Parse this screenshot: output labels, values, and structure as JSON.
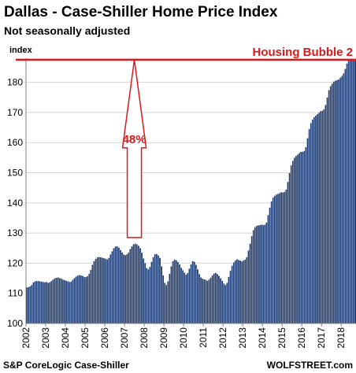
{
  "title": "Dallas - Case-Shiller Home Price Index",
  "subtitle": "Not seasonally adjusted",
  "source": "S&P CoreLogic Case-Shiller",
  "brand": "WOLFSTREET.com",
  "chart_data": {
    "type": "bar",
    "ylabel": "index",
    "ylim": [
      100,
      188
    ],
    "yticks": [
      100,
      110,
      120,
      130,
      140,
      150,
      160,
      170,
      180
    ],
    "year_labels": [
      "2002",
      "2003",
      "2004",
      "2005",
      "2006",
      "2007",
      "2008",
      "2009",
      "2010",
      "2011",
      "2012",
      "2013",
      "2014",
      "2015",
      "2016",
      "2017",
      "2018"
    ],
    "start_year": 2002,
    "reference_line": {
      "value": 187.5,
      "label": "Housing Bubble 2",
      "color": "#d9191c"
    },
    "arrow": {
      "from": 128.5,
      "to": 187.5,
      "year": 2007.5,
      "label": "48%",
      "color": "#d9191c"
    },
    "bar_color": "#1f3d73",
    "values": [
      112.0,
      112.1,
      112.3,
      112.8,
      113.6,
      114.0,
      114.1,
      114.1,
      114.0,
      113.9,
      113.8,
      113.7,
      113.8,
      113.5,
      113.7,
      114.1,
      114.6,
      115.0,
      115.2,
      115.3,
      115.1,
      114.9,
      114.6,
      114.4,
      114.2,
      114.0,
      113.8,
      113.9,
      114.5,
      115.1,
      115.6,
      115.9,
      116.1,
      116.0,
      115.8,
      115.4,
      115.5,
      115.7,
      116.5,
      117.8,
      119.5,
      120.7,
      121.5,
      122.0,
      122.1,
      122.0,
      121.8,
      121.7,
      121.5,
      121.3,
      121.8,
      122.9,
      124.0,
      125.0,
      125.6,
      125.6,
      125.2,
      124.4,
      123.6,
      122.9,
      122.7,
      123.0,
      123.6,
      124.7,
      125.6,
      126.3,
      126.5,
      126.3,
      125.8,
      125.0,
      123.5,
      121.6,
      120.1,
      118.4,
      118.0,
      118.8,
      120.5,
      122.0,
      123.0,
      123.1,
      122.6,
      121.8,
      119.0,
      116.0,
      113.5,
      112.8,
      114.0,
      116.5,
      119.0,
      120.7,
      121.2,
      121.0,
      120.4,
      119.6,
      118.5,
      117.7,
      116.9,
      116.2,
      116.8,
      118.2,
      119.6,
      120.7,
      120.5,
      119.5,
      118.0,
      116.4,
      115.3,
      114.9,
      114.7,
      114.5,
      114.2,
      114.6,
      115.2,
      116.0,
      116.6,
      116.8,
      116.4,
      115.8,
      115.0,
      114.2,
      113.3,
      112.8,
      113.5,
      115.5,
      117.5,
      119.2,
      120.3,
      120.9,
      121.3,
      121.1,
      120.9,
      120.6,
      120.9,
      121.2,
      122.0,
      124.2,
      126.5,
      129.0,
      131.0,
      132.0,
      132.4,
      132.6,
      132.7,
      132.8,
      132.7,
      132.8,
      133.5,
      136.0,
      138.5,
      140.5,
      141.8,
      142.4,
      142.8,
      143.0,
      143.3,
      143.6,
      143.5,
      143.7,
      144.5,
      147.0,
      150.0,
      152.5,
      154.0,
      155.0,
      155.6,
      156.1,
      156.6,
      157.0,
      157.0,
      157.3,
      158.5,
      161.5,
      164.5,
      166.5,
      167.7,
      168.5,
      169.0,
      169.5,
      170.0,
      170.5,
      170.6,
      171.1,
      172.5,
      175.0,
      177.5,
      178.8,
      179.6,
      180.3,
      180.6,
      180.8,
      181.0,
      181.6,
      182.2,
      183.0,
      184.5,
      186.3,
      187.4,
      187.6,
      187.6,
      187.5,
      187.3
    ]
  }
}
